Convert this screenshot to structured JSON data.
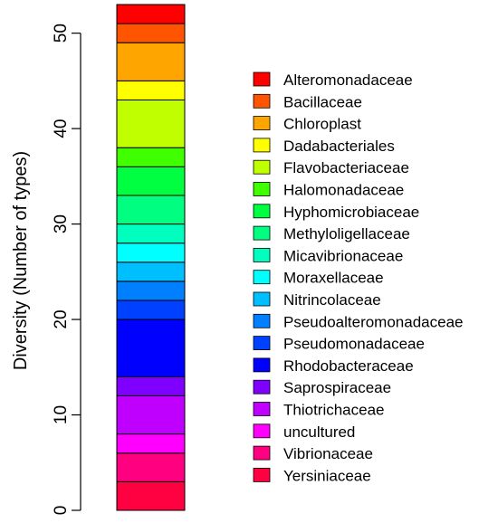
{
  "chart_data": {
    "type": "bar",
    "stacked": true,
    "ylabel": "Diversity (Number of types)",
    "ylim": [
      0,
      53
    ],
    "yticks": [
      0,
      10,
      20,
      30,
      40,
      50
    ],
    "grid": false,
    "legend_position": "right",
    "series": [
      {
        "name": "Yersiniaceae",
        "value": 3,
        "color": "#FF0040"
      },
      {
        "name": "Vibrionaceae",
        "value": 3,
        "color": "#FF0080"
      },
      {
        "name": "uncultured",
        "value": 2,
        "color": "#FF00FF"
      },
      {
        "name": "Thiotrichaceae",
        "value": 4,
        "color": "#BF00FF"
      },
      {
        "name": "Saprospiraceae",
        "value": 2,
        "color": "#8000FF"
      },
      {
        "name": "Rhodobacteraceae",
        "value": 6,
        "color": "#0000FF"
      },
      {
        "name": "Pseudomonadaceae",
        "value": 2,
        "color": "#0040FF"
      },
      {
        "name": "Pseudoalteromonadaceae",
        "value": 2,
        "color": "#0080FF"
      },
      {
        "name": "Nitrincolaceae",
        "value": 2,
        "color": "#00BFFF"
      },
      {
        "name": "Moraxellaceae",
        "value": 2,
        "color": "#00FFFF"
      },
      {
        "name": "Micavibrionaceae",
        "value": 2,
        "color": "#00FFBF"
      },
      {
        "name": "Methyloligellaceae",
        "value": 3,
        "color": "#00FF80"
      },
      {
        "name": "Hyphomicrobiaceae",
        "value": 3,
        "color": "#00FF40"
      },
      {
        "name": "Halomonadaceae",
        "value": 2,
        "color": "#40FF00"
      },
      {
        "name": "Flavobacteriaceae",
        "value": 5,
        "color": "#BFFF00"
      },
      {
        "name": "Dadabacteriales",
        "value": 2,
        "color": "#FFFF00"
      },
      {
        "name": "Chloroplast",
        "value": 4,
        "color": "#FFA500"
      },
      {
        "name": "Bacillaceae",
        "value": 2,
        "color": "#FF5500"
      },
      {
        "name": "Alteromonadaceae",
        "value": 2,
        "color": "#FF0000"
      }
    ]
  }
}
